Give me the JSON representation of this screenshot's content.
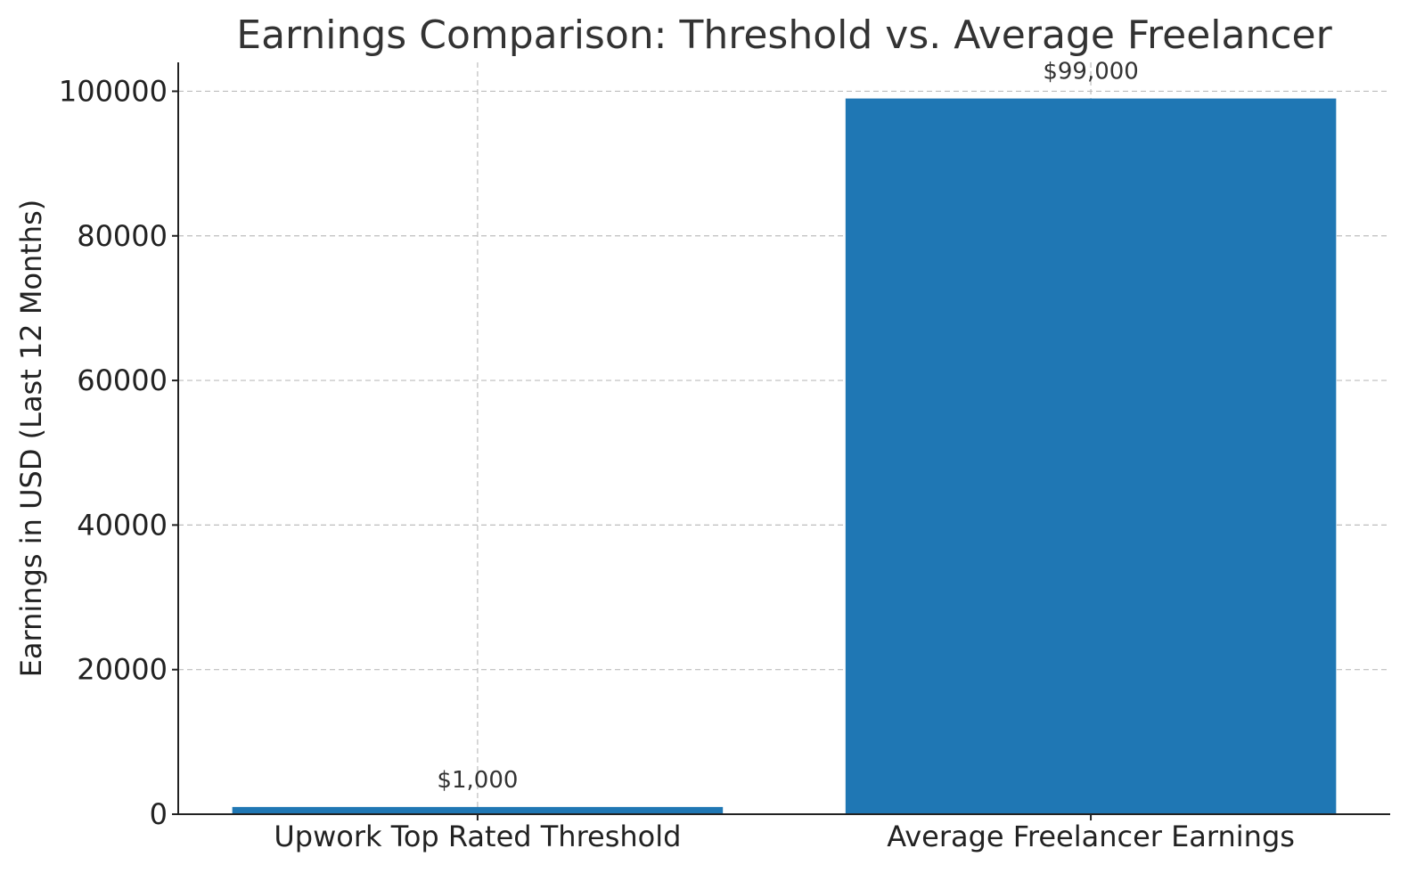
{
  "chart_data": {
    "type": "bar",
    "title": "Earnings Comparison: Threshold vs. Average Freelancer",
    "xlabel": "",
    "ylabel": "Earnings in USD (Last 12 Months)",
    "categories": [
      "Upwork Top Rated Threshold",
      "Average Freelancer Earnings"
    ],
    "values": [
      1000,
      99000
    ],
    "data_labels": [
      "$1,000",
      "$99,000"
    ],
    "ylim": [
      0,
      104000
    ],
    "yticks": [
      0,
      20000,
      40000,
      60000,
      80000,
      100000
    ],
    "ytick_labels": [
      "0",
      "20000",
      "40000",
      "60000",
      "80000",
      "100000"
    ],
    "bar_color": "#1f77b4",
    "grid": true,
    "legend": "none"
  }
}
